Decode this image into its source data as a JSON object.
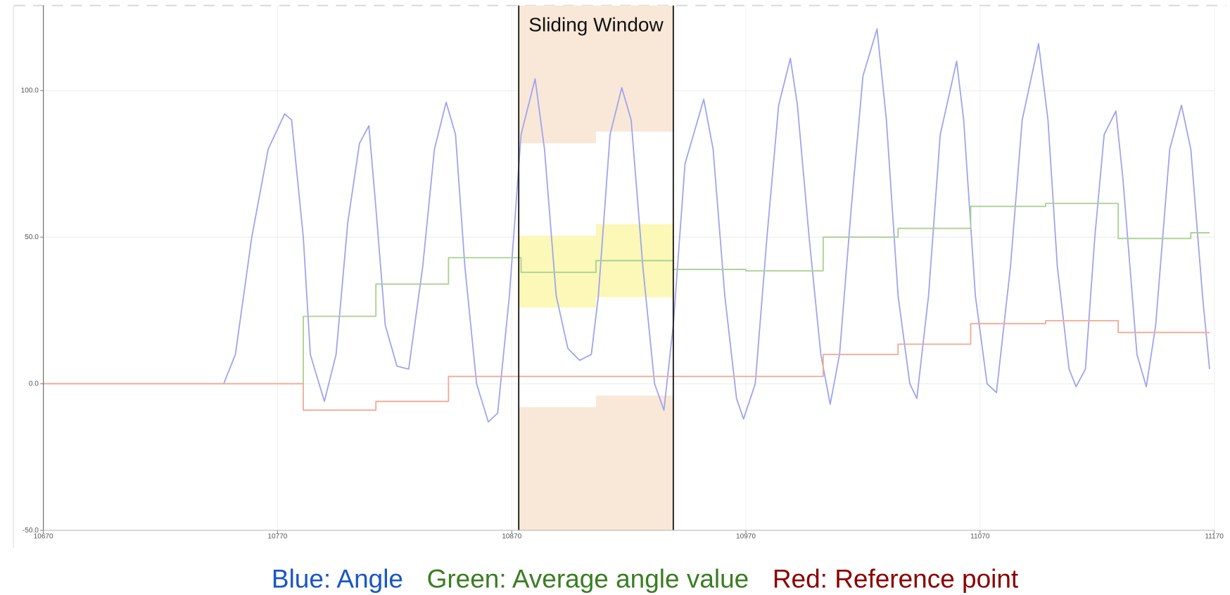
{
  "chart_data": {
    "type": "line",
    "xlim": [
      10670,
      11170
    ],
    "xticks": [
      10670,
      10770,
      10870,
      10970,
      11070,
      11170
    ],
    "ylim": [
      -50,
      129
    ],
    "yticks": [
      {
        "value": -50,
        "label": "-50.0"
      },
      {
        "value": 0,
        "label": "0.0"
      },
      {
        "value": 50,
        "label": "50.0"
      },
      {
        "value": 100,
        "label": "100.0"
      }
    ],
    "grid": true,
    "window": {
      "label": "Sliding Window",
      "xlim": [
        10873,
        10939
      ],
      "outer_color": "#f9e8d8",
      "inner_color": "#fbf8b8",
      "bands": [
        {
          "x": [
            10873,
            10906
          ],
          "upper": 82,
          "lower": -8,
          "avg_low": 26,
          "avg_high": 50.5
        },
        {
          "x": [
            10906,
            10939
          ],
          "upper": 86,
          "lower": -4,
          "avg_low": 29.5,
          "avg_high": 54.5
        }
      ]
    },
    "series": [
      {
        "name": "Blue: Angle",
        "color": "#9ea4f0",
        "label_color": "#1a56c4",
        "x": [
          10670,
          10700,
          10720,
          10747,
          10752,
          10759,
          10766,
          10773,
          10776,
          10781,
          10784,
          10790,
          10795,
          10800,
          10805,
          10809,
          10812,
          10816,
          10821,
          10826,
          10832,
          10837,
          10842,
          10846,
          10850,
          10855,
          10860,
          10864,
          10869,
          10874,
          10880,
          10884,
          10889,
          10894,
          10899,
          10904,
          10907,
          10912,
          10917,
          10921,
          10926,
          10931,
          10935,
          10939,
          10944,
          10952,
          10956,
          10961,
          10966,
          10969,
          10974,
          10979,
          10984,
          10989,
          10992,
          10997,
          11002,
          11006,
          11010,
          11015,
          11020,
          11026,
          11030,
          11035,
          11040,
          11043,
          11048,
          11053,
          11060,
          11063,
          11068,
          11073,
          11077,
          11083,
          11088,
          11095,
          11099,
          11103,
          11108,
          11111,
          11115,
          11119,
          11123,
          11128,
          11131,
          11137,
          11141,
          11145,
          11151,
          11156,
          11160,
          11165,
          11168
        ],
        "values": [
          0,
          0,
          0,
          0,
          10,
          50,
          80,
          92,
          90,
          50,
          10,
          -6,
          10,
          55,
          82,
          88,
          60,
          20,
          6,
          5,
          40,
          80,
          96,
          85,
          40,
          0,
          -13,
          -10,
          30,
          85,
          104,
          80,
          30,
          12,
          8,
          10,
          30,
          85,
          101,
          90,
          40,
          0,
          -9,
          20,
          75,
          97,
          80,
          30,
          -5,
          -12,
          0,
          50,
          95,
          111,
          95,
          50,
          10,
          -7,
          10,
          60,
          105,
          121,
          90,
          30,
          0,
          -5,
          30,
          85,
          110,
          90,
          30,
          0,
          -3,
          40,
          90,
          116,
          90,
          40,
          5,
          -1,
          5,
          50,
          85,
          93,
          70,
          10,
          -1,
          20,
          80,
          95,
          80,
          30,
          5
        ]
      },
      {
        "name": "Green: Average angle value",
        "color": "#a9d08f",
        "label_color": "#3a7d22",
        "x": [
          10670,
          10781,
          10781,
          10812,
          10812,
          10843,
          10843,
          10874,
          10874,
          10906,
          10906,
          10939,
          10939,
          10970,
          10970,
          11003,
          11003,
          11035,
          11035,
          11066,
          11066,
          11098,
          11098,
          11129,
          11129,
          11160,
          11160,
          11168
        ],
        "values": [
          0,
          0,
          23,
          23,
          34,
          34,
          43,
          43,
          38,
          38,
          42,
          42,
          39,
          39,
          38.5,
          38.5,
          50,
          50,
          53,
          53,
          60.5,
          60.5,
          61.5,
          61.5,
          49.5,
          49.5,
          51.5,
          51.5
        ]
      },
      {
        "name": "Red: Reference point",
        "color": "#f2a893",
        "label_color": "#8b0000",
        "x": [
          10670,
          10781,
          10781,
          10812,
          10812,
          10843,
          10843,
          11003,
          11003,
          11035,
          11035,
          11066,
          11066,
          11098,
          11098,
          11129,
          11129,
          11168
        ],
        "values": [
          0,
          0,
          -9,
          -9,
          -6,
          -6,
          2.5,
          2.5,
          10,
          10,
          13.5,
          13.5,
          20.5,
          20.5,
          21.5,
          21.5,
          17.5,
          17.5
        ]
      }
    ]
  }
}
